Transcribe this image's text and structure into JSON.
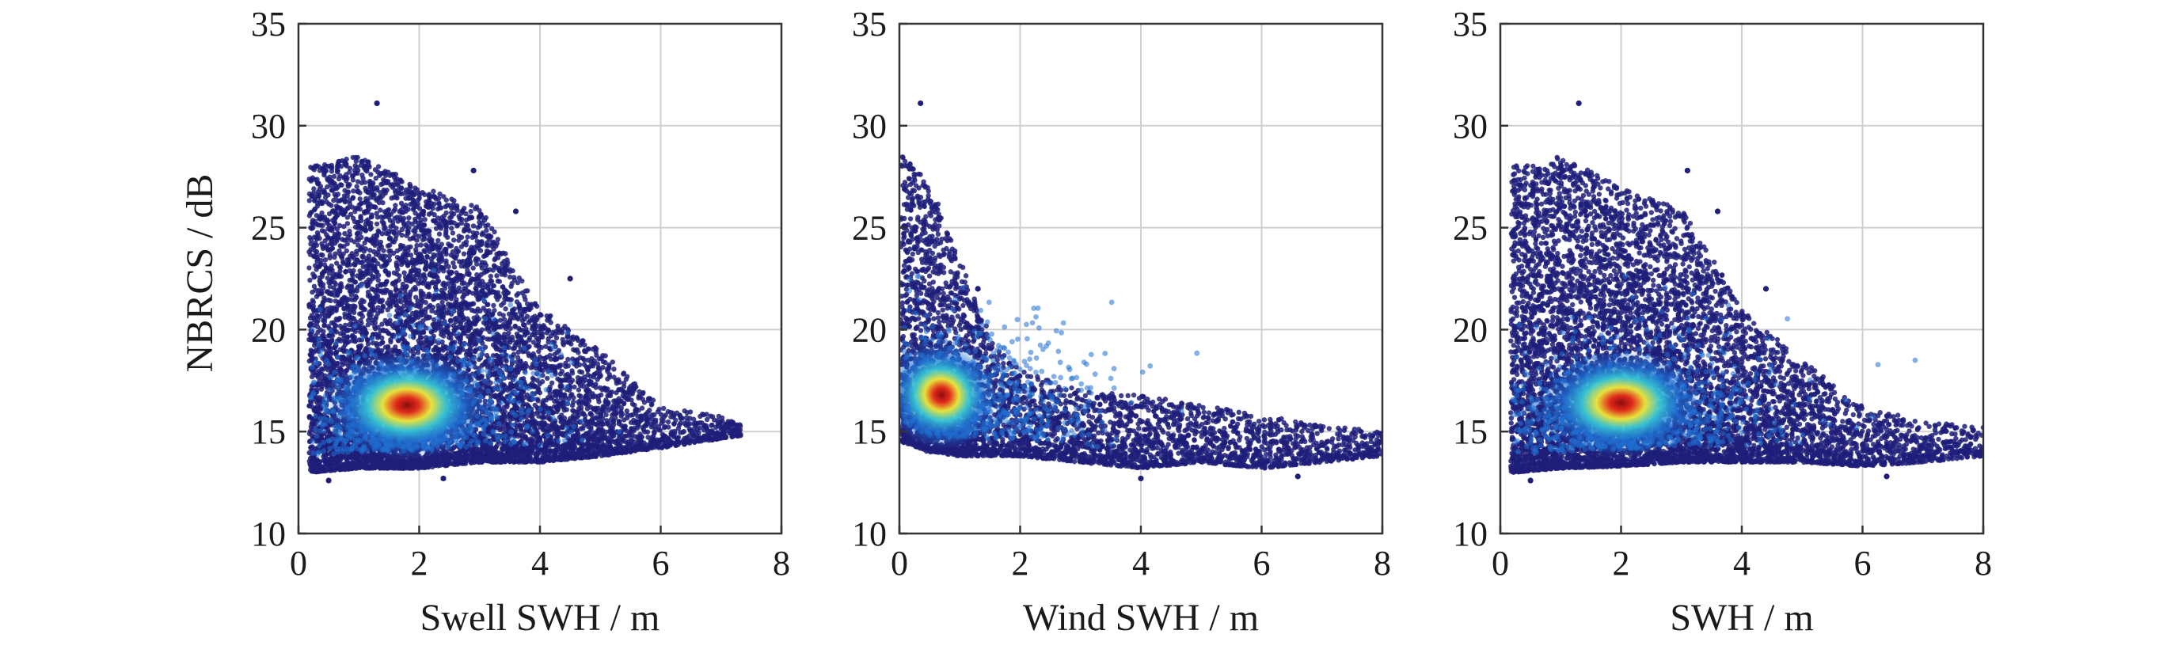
{
  "colors": {
    "density_low": "#1f1f7a",
    "density_mid_low": "#1f6fd1",
    "density_mid": "#38c7d4",
    "density_mid_high": "#e8e23b",
    "density_high": "#e02a1b",
    "density_peak": "#8c0d0d",
    "grid": "#cfcfcf",
    "axis": "#333333"
  },
  "figure": {
    "ylabel": "NBRCS / dB"
  },
  "chart_data": [
    {
      "type": "scatter",
      "xlabel": "Swell SWH / m",
      "ylabel": "NBRCS / dB",
      "xlim": [
        0,
        8
      ],
      "ylim": [
        10,
        35
      ],
      "xticks": [
        0,
        2,
        4,
        6,
        8
      ],
      "yticks": [
        10,
        15,
        20,
        25,
        30,
        35
      ],
      "grid": true,
      "density_peak": {
        "x": 1.8,
        "y": 16.3
      },
      "envelope": [
        {
          "x": 0.2,
          "y_min": 13.0,
          "y_max": 28.0
        },
        {
          "x": 1.0,
          "y_min": 13.2,
          "y_max": 28.5
        },
        {
          "x": 2.0,
          "y_min": 13.2,
          "y_max": 27.0
        },
        {
          "x": 3.0,
          "y_min": 13.5,
          "y_max": 26.0
        },
        {
          "x": 4.0,
          "y_min": 13.5,
          "y_max": 21.0
        },
        {
          "x": 5.0,
          "y_min": 13.8,
          "y_max": 19.0
        },
        {
          "x": 6.0,
          "y_min": 14.2,
          "y_max": 16.2
        },
        {
          "x": 7.3,
          "y_min": 14.8,
          "y_max": 15.6
        }
      ],
      "outliers": [
        {
          "x": 1.3,
          "y": 31.1
        },
        {
          "x": 2.9,
          "y": 27.8
        },
        {
          "x": 3.6,
          "y": 25.8
        },
        {
          "x": 4.5,
          "y": 22.5
        },
        {
          "x": 0.5,
          "y": 12.6
        },
        {
          "x": 2.4,
          "y": 12.7
        }
      ]
    },
    {
      "type": "scatter",
      "xlabel": "Wind SWH / m",
      "ylabel": "",
      "xlim": [
        0,
        8
      ],
      "ylim": [
        10,
        35
      ],
      "xticks": [
        0,
        2,
        4,
        6,
        8
      ],
      "yticks": [
        10,
        15,
        20,
        25,
        30,
        35
      ],
      "grid": true,
      "density_peak": {
        "x": 0.7,
        "y": 16.8
      },
      "envelope": [
        {
          "x": 0.05,
          "y_min": 14.5,
          "y_max": 28.8
        },
        {
          "x": 0.5,
          "y_min": 14.0,
          "y_max": 27.0
        },
        {
          "x": 1.0,
          "y_min": 13.8,
          "y_max": 23.5
        },
        {
          "x": 1.5,
          "y_min": 13.8,
          "y_max": 19.5
        },
        {
          "x": 2.0,
          "y_min": 13.8,
          "y_max": 18.0
        },
        {
          "x": 3.0,
          "y_min": 13.5,
          "y_max": 17.0
        },
        {
          "x": 4.0,
          "y_min": 13.2,
          "y_max": 16.8
        },
        {
          "x": 5.0,
          "y_min": 13.5,
          "y_max": 16.3
        },
        {
          "x": 6.0,
          "y_min": 13.2,
          "y_max": 15.8
        },
        {
          "x": 7.0,
          "y_min": 13.5,
          "y_max": 15.3
        },
        {
          "x": 8.0,
          "y_min": 13.8,
          "y_max": 15.0
        }
      ],
      "outliers": [
        {
          "x": 0.35,
          "y": 31.1
        },
        {
          "x": 1.3,
          "y": 22.0
        },
        {
          "x": 4.0,
          "y": 12.7
        },
        {
          "x": 6.6,
          "y": 12.8
        }
      ]
    },
    {
      "type": "scatter",
      "xlabel": "SWH / m",
      "ylabel": "",
      "xlim": [
        0,
        8
      ],
      "ylim": [
        10,
        35
      ],
      "xticks": [
        0,
        2,
        4,
        6,
        8
      ],
      "yticks": [
        10,
        15,
        20,
        25,
        30,
        35
      ],
      "grid": true,
      "density_peak": {
        "x": 2.0,
        "y": 16.4
      },
      "envelope": [
        {
          "x": 0.2,
          "y_min": 13.0,
          "y_max": 28.0
        },
        {
          "x": 1.0,
          "y_min": 13.2,
          "y_max": 28.5
        },
        {
          "x": 2.0,
          "y_min": 13.3,
          "y_max": 27.0
        },
        {
          "x": 3.0,
          "y_min": 13.5,
          "y_max": 26.0
        },
        {
          "x": 4.0,
          "y_min": 13.5,
          "y_max": 21.0
        },
        {
          "x": 5.0,
          "y_min": 13.5,
          "y_max": 18.5
        },
        {
          "x": 6.0,
          "y_min": 13.3,
          "y_max": 16.2
        },
        {
          "x": 7.0,
          "y_min": 13.5,
          "y_max": 15.5
        },
        {
          "x": 8.0,
          "y_min": 13.8,
          "y_max": 15.2
        }
      ],
      "outliers": [
        {
          "x": 1.3,
          "y": 31.1
        },
        {
          "x": 3.1,
          "y": 27.8
        },
        {
          "x": 3.6,
          "y": 25.8
        },
        {
          "x": 4.4,
          "y": 22.0
        },
        {
          "x": 0.5,
          "y": 12.6
        },
        {
          "x": 6.4,
          "y": 12.8
        }
      ]
    }
  ]
}
